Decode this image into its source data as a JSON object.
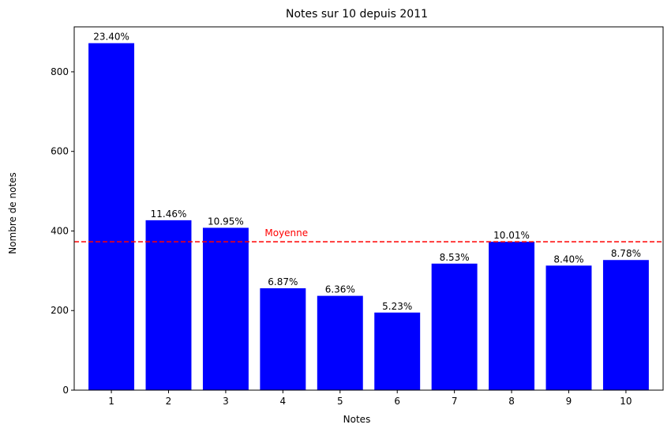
{
  "chart_data": {
    "type": "bar",
    "title": "Notes sur 10 depuis 2011",
    "xlabel": "Notes",
    "ylabel": "Nombre de notes",
    "categories": [
      "1",
      "2",
      "3",
      "4",
      "5",
      "6",
      "7",
      "8",
      "9",
      "10"
    ],
    "values": [
      872,
      427,
      408,
      256,
      237,
      195,
      318,
      373,
      313,
      327
    ],
    "data_labels": [
      "23.40%",
      "11.46%",
      "10.95%",
      "6.87%",
      "6.36%",
      "5.23%",
      "8.53%",
      "10.01%",
      "8.40%",
      "8.78%"
    ],
    "ylim": [
      0,
      913
    ],
    "yticks": [
      0,
      200,
      400,
      600,
      800
    ],
    "grid": false,
    "bar_color": "#0000ff",
    "reference_line": {
      "label": "Moyenne",
      "value": 373,
      "color": "#ff0000",
      "style": "dashed"
    }
  }
}
